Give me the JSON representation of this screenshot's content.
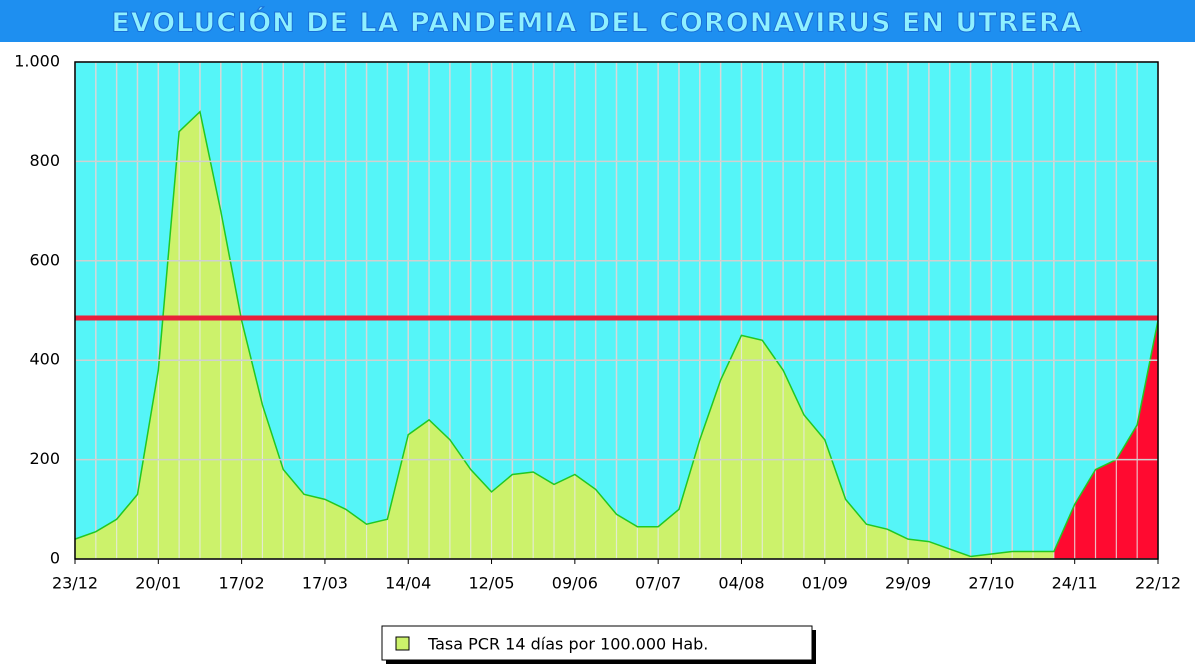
{
  "chart_data": {
    "type": "area",
    "title": "EVOLUCIÓN DE LA PANDEMIA DEL CORONAVIRUS EN UTRERA",
    "categories": [
      "23/12",
      null,
      null,
      null,
      "20/01",
      null,
      null,
      null,
      "17/02",
      null,
      null,
      null,
      "17/03",
      null,
      null,
      null,
      "14/04",
      null,
      null,
      null,
      "12/05",
      null,
      null,
      null,
      "09/06",
      null,
      null,
      null,
      "07/07",
      null,
      null,
      null,
      "04/08",
      null,
      null,
      null,
      "01/09",
      null,
      null,
      null,
      "29/09",
      null,
      null,
      null,
      "27/10",
      null,
      null,
      null,
      "24/11",
      null,
      null,
      null,
      "22/12"
    ],
    "series": [
      {
        "name": "Tasa PCR 14 días por 100.000 Hab.",
        "color": "#ccf26b",
        "line_color": "#22c822",
        "values": [
          40,
          55,
          80,
          130,
          380,
          860,
          900,
          700,
          480,
          310,
          180,
          130,
          120,
          100,
          70,
          80,
          250,
          280,
          240,
          180,
          135,
          170,
          175,
          150,
          170,
          140,
          90,
          65,
          65,
          100,
          240,
          360,
          450,
          440,
          380,
          290,
          240,
          120,
          70,
          60,
          40,
          35,
          20,
          5,
          10,
          15,
          15,
          15,
          110,
          180,
          200,
          270,
          480
        ]
      }
    ],
    "highlight_color": "#ff0a30",
    "highlight_from_index": 47,
    "threshold": 485,
    "threshold_color": "#e8203a",
    "ylim": [
      0,
      1000
    ],
    "yticks": [
      0,
      200,
      400,
      600,
      800,
      {
        "value": 1000,
        "label": "1.000"
      }
    ],
    "grid": true,
    "background": "#55f5f8"
  }
}
